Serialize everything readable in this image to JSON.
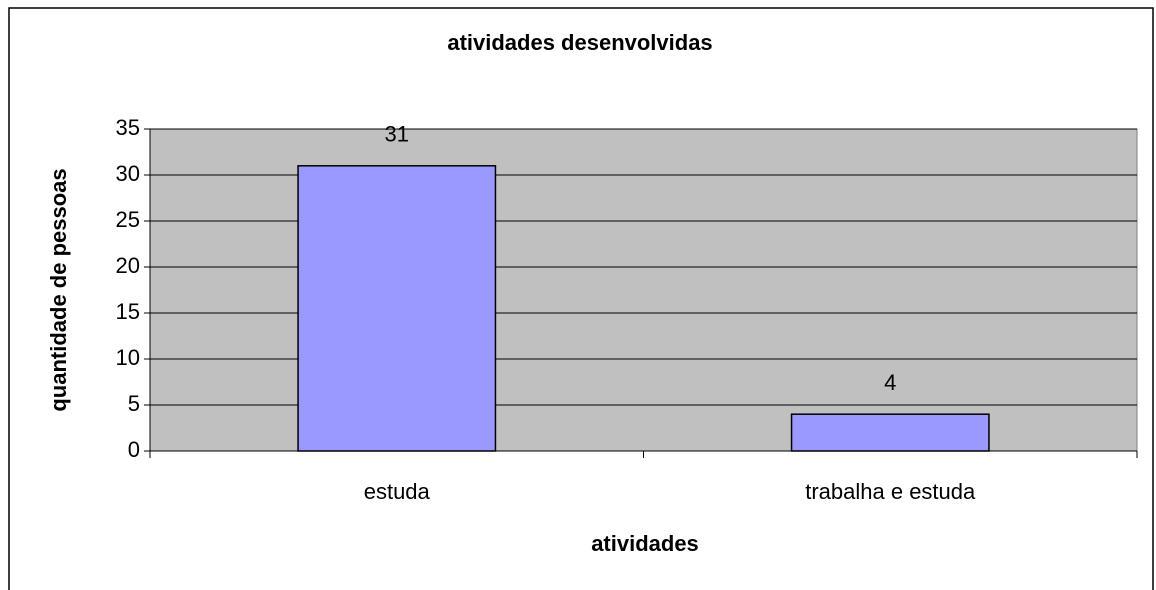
{
  "chart_data": {
    "type": "bar",
    "title": "atividades desenvolvidas",
    "x_label": "atividades",
    "y_label": "quantidade de pessoas",
    "categories": [
      "estuda",
      "trabalha e estuda"
    ],
    "values": [
      31,
      4
    ],
    "color": "#9999ff",
    "ylim": [
      0,
      35
    ],
    "yticks": [
      0,
      5,
      10,
      15,
      20,
      25,
      30,
      35
    ],
    "grid": true
  }
}
